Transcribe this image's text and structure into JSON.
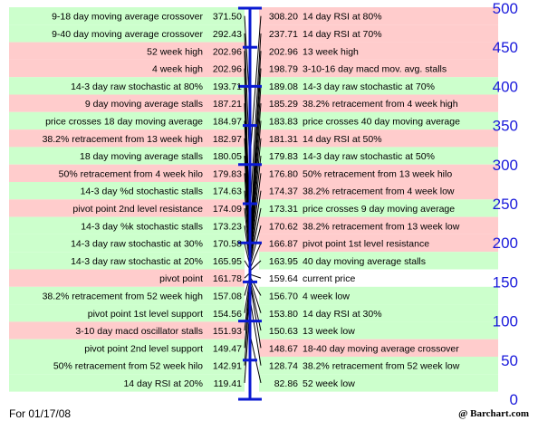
{
  "chart_data": {
    "type": "pivot-ladder",
    "title": "",
    "axis": {
      "ticks": [
        0,
        50,
        100,
        150,
        200,
        250,
        300,
        350,
        400,
        450,
        500
      ],
      "range": [
        0,
        500
      ]
    },
    "left": [
      {
        "label": "9-18 day moving average crossover",
        "value": "371.50",
        "bg": "green"
      },
      {
        "label": "9-40 day moving average crossover",
        "value": "292.43",
        "bg": "green"
      },
      {
        "label": "52 week high",
        "value": "202.96",
        "bg": "pink"
      },
      {
        "label": "4 week high",
        "value": "202.96",
        "bg": "pink"
      },
      {
        "label": "14-3 day raw stochastic at 80%",
        "value": "193.71",
        "bg": "green"
      },
      {
        "label": "9 day moving average stalls",
        "value": "187.21",
        "bg": "pink"
      },
      {
        "label": "price crosses 18 day moving average",
        "value": "184.97",
        "bg": "green"
      },
      {
        "label": "38.2% retracement from 13 week high",
        "value": "182.97",
        "bg": "pink"
      },
      {
        "label": "18 day moving average stalls",
        "value": "180.05",
        "bg": "green"
      },
      {
        "label": "50% retracement from 4 week hilo",
        "value": "179.83",
        "bg": "pink"
      },
      {
        "label": "14-3 day %d stochastic stalls",
        "value": "174.63",
        "bg": "green"
      },
      {
        "label": "pivot point 2nd level resistance",
        "value": "174.09",
        "bg": "pink"
      },
      {
        "label": "14-3 day %k stochastic stalls",
        "value": "173.23",
        "bg": "green"
      },
      {
        "label": "14-3 day raw stochastic at 30%",
        "value": "170.58",
        "bg": "green"
      },
      {
        "label": "14-3 day raw stochastic at 20%",
        "value": "165.95",
        "bg": "green"
      },
      {
        "label": "pivot point",
        "value": "161.78",
        "bg": "pink"
      },
      {
        "label": "38.2% retracement from 52 week high",
        "value": "157.08",
        "bg": "green"
      },
      {
        "label": "pivot point 1st level support",
        "value": "154.56",
        "bg": "green"
      },
      {
        "label": "3-10 day macd oscillator stalls",
        "value": "151.93",
        "bg": "pink"
      },
      {
        "label": "pivot point 2nd level support",
        "value": "149.47",
        "bg": "green"
      },
      {
        "label": "50% retracement from 52 week hilo",
        "value": "142.91",
        "bg": "green"
      },
      {
        "label": "14 day RSI at 20%",
        "value": "119.41",
        "bg": "green"
      }
    ],
    "right": [
      {
        "label": "14 day RSI at 80%",
        "value": "308.20",
        "bg": "pink"
      },
      {
        "label": "14 day RSI at 70%",
        "value": "237.71",
        "bg": "pink"
      },
      {
        "label": "13 week high",
        "value": "202.96",
        "bg": "pink"
      },
      {
        "label": "3-10-16 day macd mov. avg. stalls",
        "value": "198.79",
        "bg": "pink"
      },
      {
        "label": "14-3 day raw stochastic at 70%",
        "value": "189.08",
        "bg": "green"
      },
      {
        "label": "38.2% retracement from 4 week high",
        "value": "185.29",
        "bg": "pink"
      },
      {
        "label": "price crosses 40 day moving average",
        "value": "183.83",
        "bg": "green"
      },
      {
        "label": "14 day RSI at 50%",
        "value": "181.31",
        "bg": "pink"
      },
      {
        "label": "14-3 day raw stochastic at 50%",
        "value": "179.83",
        "bg": "green"
      },
      {
        "label": "50% retracement from 13 week hilo",
        "value": "176.80",
        "bg": "pink"
      },
      {
        "label": "38.2% retracement from 4 week low",
        "value": "174.37",
        "bg": "pink"
      },
      {
        "label": "price crosses 9 day moving average",
        "value": "173.31",
        "bg": "green"
      },
      {
        "label": "38.2% retracement from 13 week low",
        "value": "170.62",
        "bg": "pink"
      },
      {
        "label": "pivot point 1st level resistance",
        "value": "166.87",
        "bg": "pink"
      },
      {
        "label": "40 day moving average stalls",
        "value": "163.95",
        "bg": "green"
      },
      {
        "label": "current price",
        "value": "159.64",
        "bg": "white"
      },
      {
        "label": "4 week low",
        "value": "156.70",
        "bg": "green"
      },
      {
        "label": "14 day RSI at 30%",
        "value": "153.80",
        "bg": "green"
      },
      {
        "label": "13 week low",
        "value": "150.63",
        "bg": "green"
      },
      {
        "label": "18-40 day moving average crossover",
        "value": "148.67",
        "bg": "pink"
      },
      {
        "label": "38.2% retracement from 52 week low",
        "value": "128.74",
        "bg": "green"
      },
      {
        "label": "52 week low",
        "value": "82.86",
        "bg": "green"
      }
    ]
  },
  "colors": {
    "green": "#ccffcc",
    "pink": "#ffcccc",
    "white": "#ffffff",
    "axis": "#0a1ad2",
    "axis_text": "#1a1adb"
  },
  "footer": {
    "date": "For 01/17/08",
    "credit": "@ Barchart.com"
  }
}
